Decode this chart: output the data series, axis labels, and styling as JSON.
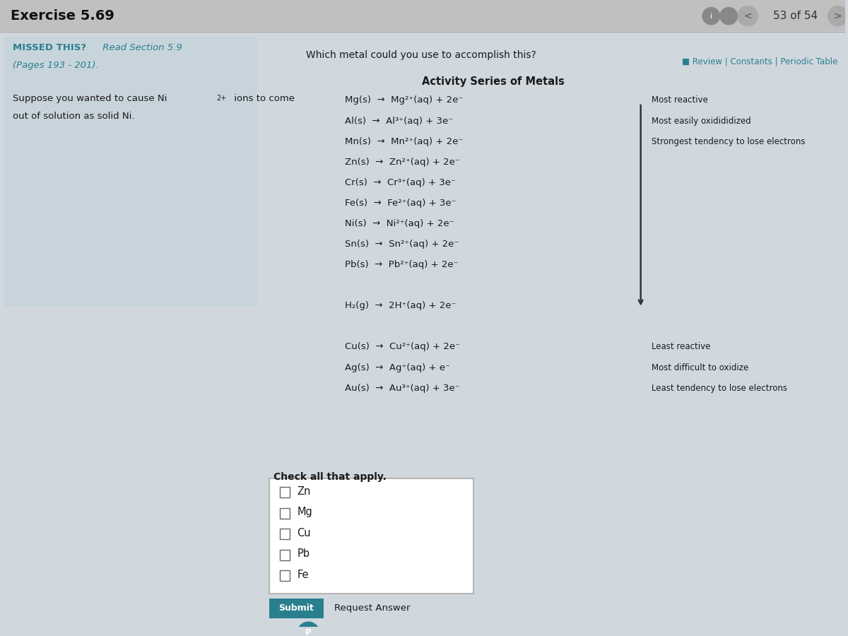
{
  "title": "Exercise 5.69",
  "page_nav": "53 of 54",
  "missed_text_bold": "MISSED THIS?",
  "missed_text_italic": " Read Section 5.9",
  "missed_text2": "(Pages 193 - 201).",
  "question": "Which metal could you use to accomplish this?",
  "series_title": "Activity Series of Metals",
  "reactions": [
    "Mg(s)  →  Mg²⁺(aq) + 2e⁻",
    "Al(s)  →  Al³⁺(aq) + 3e⁻",
    "Mn(s)  →  Mn²⁺(aq) + 2e⁻",
    "Zn(s)  →  Zn²⁺(aq) + 2e⁻",
    "Cr(s)  →  Cr³⁺(aq) + 3e⁻",
    "Fe(s)  →  Fe²⁺(aq) + 3e⁻",
    "Ni(s)  →  Ni²⁺(aq) + 2e⁻",
    "Sn(s)  →  Sn²⁺(aq) + 2e⁻",
    "Pb(s)  →  Pb²⁺(aq) + 2e⁻",
    "",
    "H₂(g)  →  2H⁺(aq) + 2e⁻",
    "",
    "Cu(s)  →  Cu²⁺(aq) + 2e⁻",
    "Ag(s)  →  Ag⁺(aq) + e⁻",
    "Au(s)  →  Au³⁺(aq) + 3e⁻"
  ],
  "side_labels_top": [
    [
      0,
      "Most reactive"
    ],
    [
      1,
      "Most easily oxidididized"
    ],
    [
      2,
      "Strongest tendency to lose electrons"
    ]
  ],
  "side_labels_bottom": [
    [
      12,
      "Least reactive"
    ],
    [
      13,
      "Most difficult to oxidize"
    ],
    [
      14,
      "Least tendency to lose electrons"
    ]
  ],
  "check_label": "Check all that apply.",
  "checkboxes": [
    "Zn",
    "Mg",
    "Cu",
    "Pb",
    "Fe"
  ],
  "submit_btn": "Submit",
  "request_answer": "Request Answer",
  "review_link": "■ Review | Constants | Periodic Table",
  "bg_color": "#d0d8de",
  "left_panel_bg": "#c8d4db",
  "arrow_color": "#333333",
  "submit_btn_color": "#2a7f8f",
  "text_color": "#1a1a1a",
  "teal_color": "#2a7f8f"
}
